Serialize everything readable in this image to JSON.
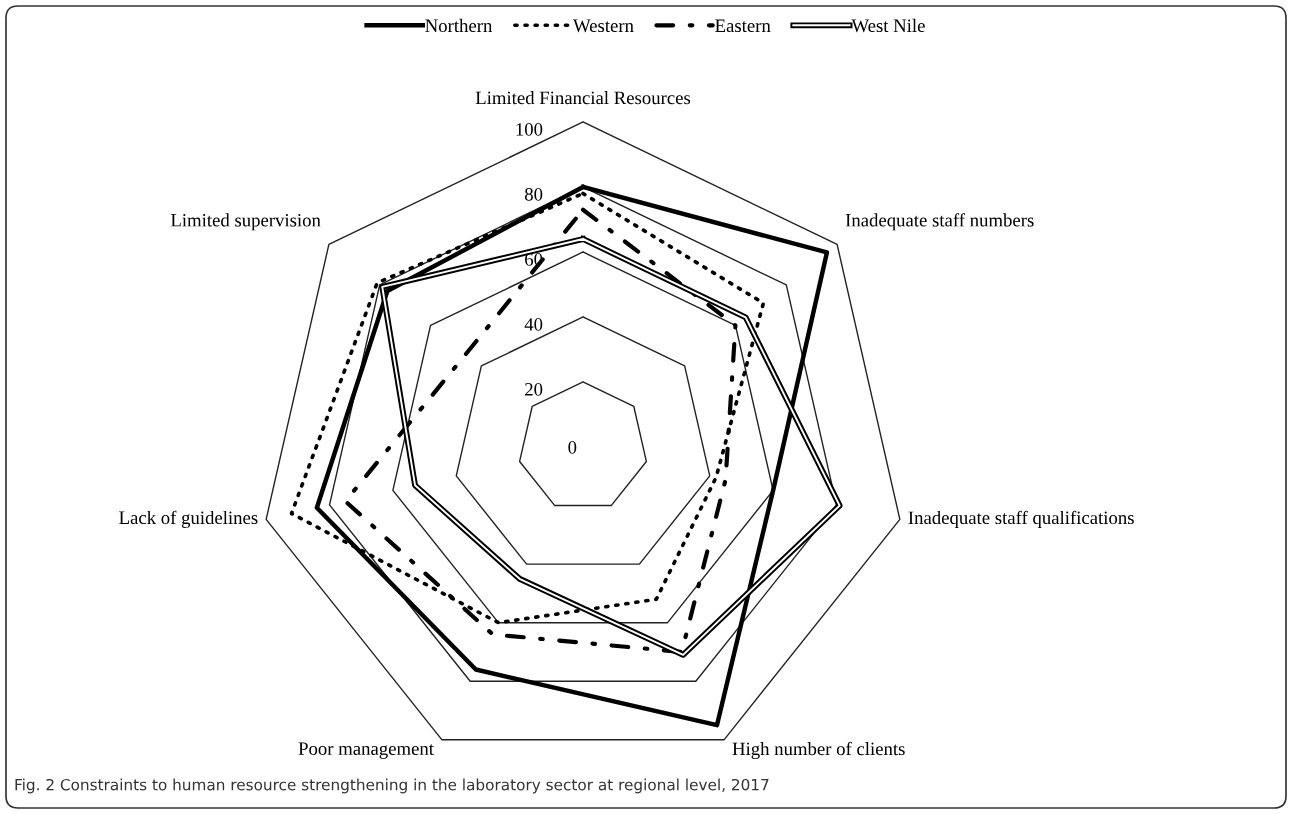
{
  "chart_data": {
    "type": "radar",
    "categories": [
      "Limited Financial Resources",
      "Inadequate staff numbers",
      "Inadequate staff qualifications",
      "High number of clients",
      "Poor management",
      "Lack of guidelines",
      "Limited supervision"
    ],
    "series": [
      {
        "name": "Northern",
        "color": "#000000",
        "line_style": "solid",
        "values": [
          80,
          96,
          60,
          95,
          76,
          84,
          77
        ]
      },
      {
        "name": "Western",
        "color": "#000000",
        "line_style": "dotted",
        "values": [
          78,
          71,
          42,
          52,
          60,
          92,
          81
        ]
      },
      {
        "name": "Eastern",
        "color": "#000000",
        "line_style": "dashdot",
        "values": [
          73,
          60,
          45,
          70,
          64,
          75,
          46
        ]
      },
      {
        "name": "West Nile",
        "color": "#000000",
        "line_style": "double",
        "values": [
          64,
          64,
          81,
          71,
          45,
          53,
          79
        ]
      }
    ],
    "ylim": [
      0,
      100
    ],
    "yticks": [
      0,
      20,
      40,
      60,
      80,
      100
    ],
    "grid": true,
    "legend": "top",
    "annotations": [
      "Fig. 2 Constraints to human resource strengthening in the laboratory sector at regional level, 2017"
    ]
  }
}
